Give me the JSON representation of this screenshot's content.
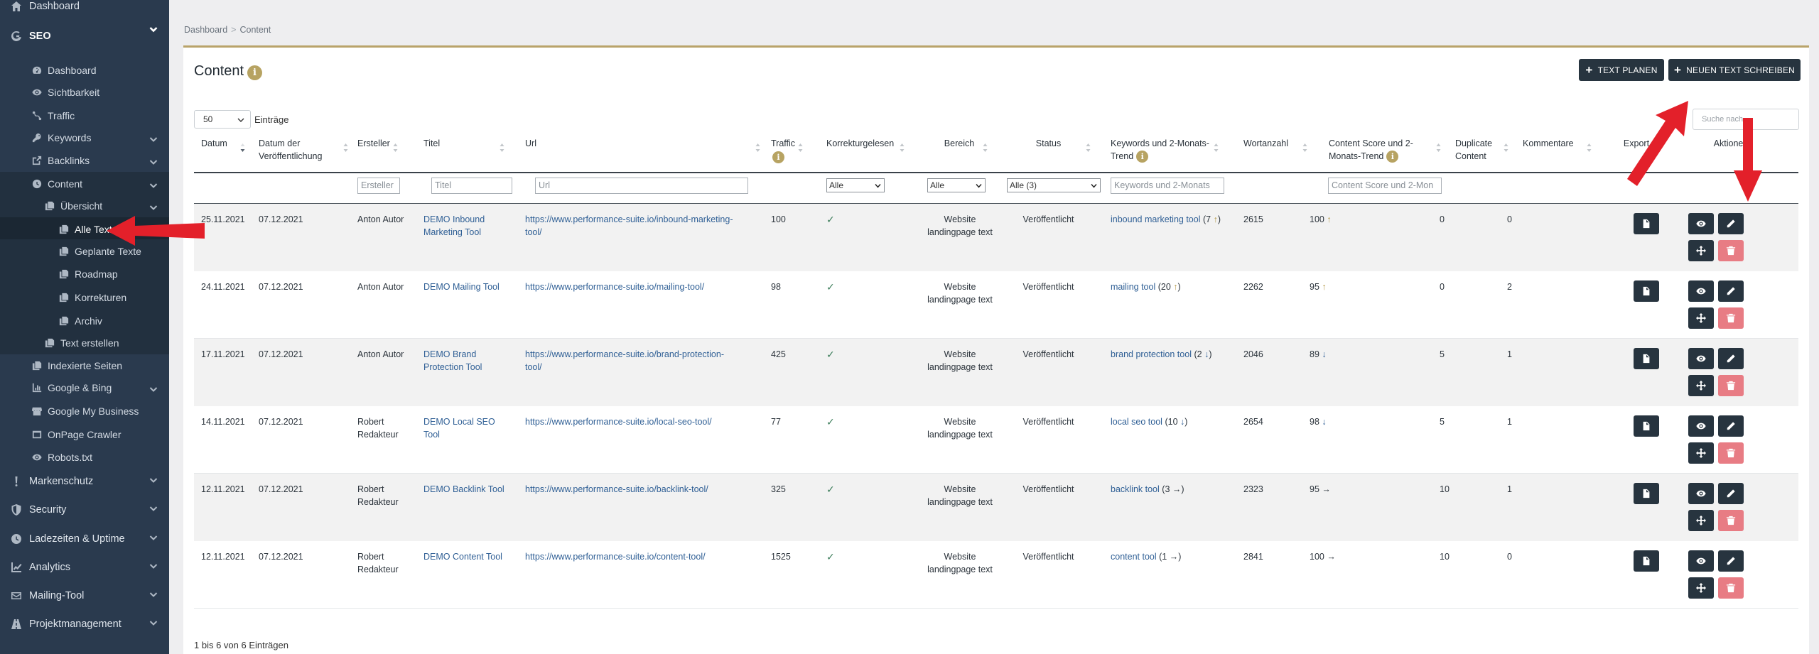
{
  "sidebar": {
    "items": [
      {
        "label": "Dashboard",
        "icon": "home-icon",
        "level": 1
      },
      {
        "label": "SEO",
        "icon": "google-icon",
        "level": 1,
        "expanded": true
      },
      {
        "label": "Dashboard",
        "icon": "gauge-icon",
        "level": 2
      },
      {
        "label": "Sichtbarkeit",
        "icon": "eye-icon",
        "level": 2
      },
      {
        "label": "Traffic",
        "icon": "route-icon",
        "level": 2
      },
      {
        "label": "Keywords",
        "icon": "key-icon",
        "level": 2,
        "has_children": true
      },
      {
        "label": "Backlinks",
        "icon": "external-link-icon",
        "level": 2,
        "has_children": true
      },
      {
        "label": "Content",
        "icon": "clock-icon",
        "level": 2,
        "has_children": true,
        "expanded": true
      },
      {
        "label": "Übersicht",
        "icon": "copy-icon",
        "level": 3,
        "has_children": true,
        "expanded": true
      },
      {
        "label": "Alle Texte",
        "icon": "copy-icon",
        "level": 4,
        "active": true
      },
      {
        "label": "Geplante Texte",
        "icon": "copy-icon",
        "level": 4
      },
      {
        "label": "Roadmap",
        "icon": "copy-icon",
        "level": 4
      },
      {
        "label": "Korrekturen",
        "icon": "copy-icon",
        "level": 4
      },
      {
        "label": "Archiv",
        "icon": "copy-icon",
        "level": 4
      },
      {
        "label": "Text erstellen",
        "icon": "copy-icon",
        "level": 3
      },
      {
        "label": "Indexierte Seiten",
        "icon": "copy-icon",
        "level": 2
      },
      {
        "label": "Google & Bing",
        "icon": "chart-icon",
        "level": 2,
        "has_children": true
      },
      {
        "label": "Google My Business",
        "icon": "store-icon",
        "level": 2
      },
      {
        "label": "OnPage Crawler",
        "icon": "window-icon",
        "level": 2
      },
      {
        "label": "Robots.txt",
        "icon": "eye-icon",
        "level": 2
      },
      {
        "label": "Markenschutz",
        "icon": "exclamation-icon",
        "level": 1,
        "has_children": true
      },
      {
        "label": "Security",
        "icon": "shield-icon",
        "level": 1,
        "has_children": true
      },
      {
        "label": "Ladezeiten & Uptime",
        "icon": "speedometer-icon",
        "level": 1,
        "has_children": true
      },
      {
        "label": "Analytics",
        "icon": "line-chart-icon",
        "level": 1,
        "has_children": true
      },
      {
        "label": "Mailing-Tool",
        "icon": "envelope-icon",
        "level": 1,
        "has_children": true
      },
      {
        "label": "Projektmanagement",
        "icon": "road-icon",
        "level": 1,
        "has_children": true
      }
    ]
  },
  "breadcrumb": {
    "root": "Dashboard",
    "sep": ">",
    "current": "Content"
  },
  "page": {
    "title": "Content",
    "info": "i",
    "btn_plan": "TEXT PLANEN",
    "btn_write": "NEUEN TEXT SCHREIBEN",
    "page_length": "50",
    "page_length_label": "Einträge",
    "search_placeholder": "Suche nach",
    "footer": "1 bis 6 von 6 Einträgen"
  },
  "table": {
    "headers": {
      "datum": "Datum",
      "veroeff": "Datum der Veröffentlichung",
      "ersteller": "Ersteller",
      "titel": "Titel",
      "url": "Url",
      "traffic": "Traffic",
      "korrektur": "Korrekturgelesen",
      "bereich": "Bereich",
      "status": "Status",
      "keywords": "Keywords und 2-Monats-Trend",
      "wortanzahl": "Wortanzahl",
      "score": "Content Score und 2-Monats-Trend",
      "duplicate": "Duplicate Content",
      "kommentare": "Kommentare",
      "export": "Export",
      "aktionen": "Aktionen"
    },
    "filters": {
      "ersteller": "Ersteller",
      "titel": "Titel",
      "url": "Url",
      "korrektur": "Alle",
      "bereich": "Alle",
      "status": "Alle (3)",
      "keywords": "Keywords und 2-Monats",
      "score": "Content Score und 2-Mon"
    },
    "rows": [
      {
        "datum": "25.11.2021",
        "veroeff": "07.12.2021",
        "ersteller": "Anton Autor",
        "titel": "DEMO Inbound Marketing Tool",
        "url": "https://www.performance-suite.io/inbound-marketing-tool/",
        "traffic": "100",
        "korrektur": "✓",
        "bereich": "Website landingpage text",
        "status": "Veröffentlicht",
        "keyword": "inbound marketing tool",
        "kw_count": "(7",
        "kw_trend": "↑",
        "kw_close": ")",
        "wortanzahl": "2615",
        "score": "100",
        "score_trend": "↑",
        "duplicate": "0",
        "kommentare": "0"
      },
      {
        "datum": "24.11.2021",
        "veroeff": "07.12.2021",
        "ersteller": "Anton Autor",
        "titel": "DEMO Mailing Tool",
        "url": "https://www.performance-suite.io/mailing-tool/",
        "traffic": "98",
        "korrektur": "✓",
        "bereich": "Website landingpage text",
        "status": "Veröffentlicht",
        "keyword": "mailing tool",
        "kw_count": "(20",
        "kw_trend": "↑",
        "kw_close": ")",
        "wortanzahl": "2262",
        "score": "95",
        "score_trend": "↑",
        "duplicate": "0",
        "kommentare": "2"
      },
      {
        "datum": "17.11.2021",
        "veroeff": "07.12.2021",
        "ersteller": "Anton Autor",
        "titel": "DEMO Brand Protection Tool",
        "url": "https://www.performance-suite.io/brand-protection-tool/",
        "traffic": "425",
        "korrektur": "✓",
        "bereich": "Website landingpage text",
        "status": "Veröffentlicht",
        "keyword": "brand protection tool",
        "kw_count": "(2",
        "kw_trend": "↓",
        "kw_close": ")",
        "wortanzahl": "2046",
        "score": "89",
        "score_trend": "↓",
        "duplicate": "5",
        "kommentare": "1"
      },
      {
        "datum": "14.11.2021",
        "veroeff": "07.12.2021",
        "ersteller": "Robert Redakteur",
        "titel": "DEMO Local SEO Tool",
        "url": "https://www.performance-suite.io/local-seo-tool/",
        "traffic": "77",
        "korrektur": "✓",
        "bereich": "Website landingpage text",
        "status": "Veröffentlicht",
        "keyword": "local seo tool",
        "kw_count": "(10",
        "kw_trend": "↓",
        "kw_close": ")",
        "wortanzahl": "2654",
        "score": "98",
        "score_trend": "↓",
        "duplicate": "5",
        "kommentare": "1"
      },
      {
        "datum": "12.11.2021",
        "veroeff": "07.12.2021",
        "ersteller": "Robert Redakteur",
        "titel": "DEMO Backlink Tool",
        "url": "https://www.performance-suite.io/backlink-tool/",
        "traffic": "325",
        "korrektur": "✓",
        "bereich": "Website landingpage text",
        "status": "Veröffentlicht",
        "keyword": "backlink tool",
        "kw_count": "(3",
        "kw_trend": "→",
        "kw_close": ")",
        "wortanzahl": "2323",
        "score": "95",
        "score_trend": "→",
        "duplicate": "10",
        "kommentare": "1"
      },
      {
        "datum": "12.11.2021",
        "veroeff": "07.12.2021",
        "ersteller": "Robert Redakteur",
        "titel": "DEMO Content Tool",
        "url": "https://www.performance-suite.io/content-tool/",
        "traffic": "1525",
        "korrektur": "✓",
        "bereich": "Website landingpage text",
        "status": "Veröffentlicht",
        "keyword": "content tool",
        "kw_count": "(1",
        "kw_trend": "→",
        "kw_close": ")",
        "wortanzahl": "2841",
        "score": "100",
        "score_trend": "→",
        "duplicate": "10",
        "kommentare": "0"
      }
    ]
  },
  "colors": {
    "sidebar_bg": "#2a3a4e",
    "accent_gold": "#b7a362",
    "dark_button": "#27343f",
    "danger_button": "#e87c84",
    "link": "#2f5f95",
    "annotation_arrow": "#e3202a"
  }
}
